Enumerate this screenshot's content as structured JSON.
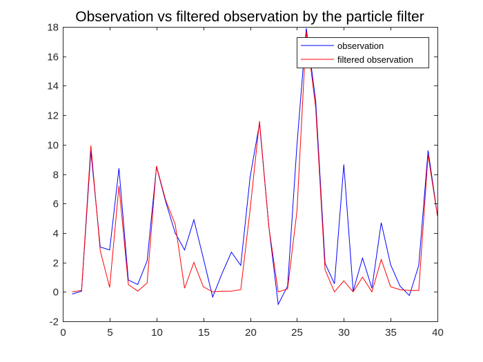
{
  "chart_data": {
    "type": "line",
    "title": "Observation vs filtered observation by the particle filter",
    "xlabel": "",
    "ylabel": "",
    "xlim": [
      0,
      40
    ],
    "ylim": [
      -2,
      18
    ],
    "xticks": [
      0,
      5,
      10,
      15,
      20,
      25,
      30,
      35,
      40
    ],
    "yticks": [
      -2,
      0,
      2,
      4,
      6,
      8,
      10,
      12,
      14,
      16,
      18
    ],
    "grid": false,
    "legend_position": "top-right",
    "x": [
      1,
      2,
      3,
      4,
      5,
      6,
      7,
      8,
      9,
      10,
      11,
      12,
      13,
      14,
      15,
      16,
      17,
      18,
      19,
      20,
      21,
      22,
      23,
      24,
      25,
      26,
      27,
      28,
      29,
      30,
      31,
      32,
      33,
      34,
      35,
      36,
      37,
      38,
      39,
      40
    ],
    "series": [
      {
        "name": "observation",
        "color": "#0000ff",
        "values": [
          -0.15,
          0.05,
          9.55,
          3.05,
          2.85,
          8.4,
          0.8,
          0.5,
          2.1,
          8.5,
          6.1,
          4.0,
          2.85,
          4.9,
          2.3,
          -0.35,
          1.25,
          2.7,
          1.8,
          7.8,
          11.45,
          4.4,
          -0.85,
          0.4,
          10.0,
          17.9,
          13.0,
          1.95,
          0.55,
          8.65,
          0.05,
          2.3,
          0.25,
          4.7,
          1.85,
          0.4,
          -0.25,
          1.8,
          9.6,
          5.2
        ]
      },
      {
        "name": "filtered observation",
        "color": "#ff0000",
        "values": [
          0.0,
          0.1,
          9.95,
          2.8,
          0.3,
          7.2,
          0.5,
          0.05,
          0.6,
          8.55,
          6.2,
          4.6,
          0.25,
          2.0,
          0.35,
          0.0,
          0.05,
          0.05,
          0.15,
          5.6,
          11.6,
          4.4,
          0.0,
          0.2,
          5.5,
          17.7,
          12.5,
          1.5,
          0.0,
          0.75,
          0.0,
          1.0,
          0.0,
          2.2,
          0.35,
          0.15,
          0.1,
          0.1,
          9.3,
          5.15
        ]
      }
    ]
  }
}
